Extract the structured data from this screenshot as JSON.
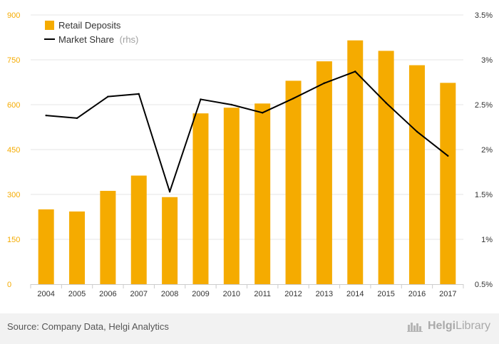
{
  "colors": {
    "bar": "#f5ab00",
    "line": "#000000",
    "left_axis_text": "#f5ab00",
    "right_axis_text": "#333333",
    "tick_text": "#333333",
    "grid": "#e6e6e6",
    "legend_note": "#a0a0a0"
  },
  "chart_data": {
    "type": "bar",
    "categories": [
      "2004",
      "2005",
      "2006",
      "2007",
      "2008",
      "2009",
      "2010",
      "2011",
      "2012",
      "2013",
      "2014",
      "2015",
      "2016",
      "2017"
    ],
    "series": [
      {
        "name": "Retail Deposits",
        "type": "bar",
        "axis": "left",
        "values": [
          250,
          243,
          312,
          363,
          291,
          571,
          590,
          604,
          680,
          745,
          815,
          780,
          732,
          673
        ]
      },
      {
        "name": "Market Share",
        "name_note": "(rhs)",
        "type": "line",
        "axis": "right",
        "values": [
          2.38,
          2.35,
          2.59,
          2.62,
          1.53,
          2.56,
          2.5,
          2.41,
          2.57,
          2.74,
          2.87,
          2.52,
          2.2,
          1.93
        ]
      }
    ],
    "y_left": {
      "ylim": [
        0,
        900
      ],
      "ticks": [
        "0",
        "150",
        "300",
        "450",
        "600",
        "750",
        "900"
      ]
    },
    "y_right": {
      "ylim": [
        0.5,
        3.5
      ],
      "ticks": [
        "0.5%",
        "1%",
        "1.5%",
        "2%",
        "2.5%",
        "3%",
        "3.5%"
      ]
    },
    "grid": true,
    "legend_position": "top-left"
  },
  "footer": {
    "source": "Source: Company Data, Helgi Analytics",
    "brand_bold": "Helgi",
    "brand_light": "Library"
  }
}
